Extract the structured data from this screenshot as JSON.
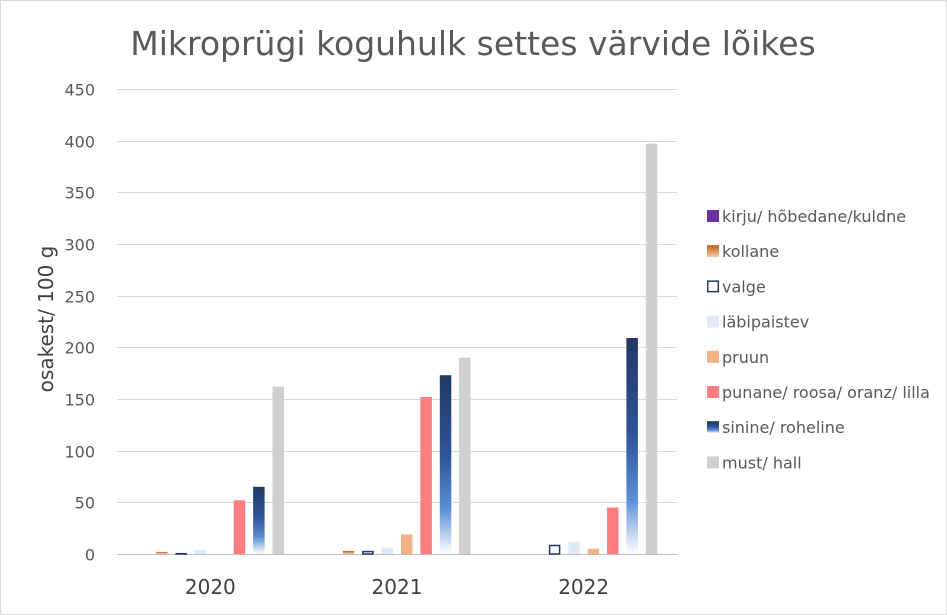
{
  "chart_data": {
    "type": "bar",
    "title": "Mikroprügi koguhulk settes värvide lõikes",
    "xlabel": "",
    "ylabel": "osakest/ 100  g",
    "ylim": [
      0,
      450
    ],
    "yticks": [
      0,
      50,
      100,
      150,
      200,
      250,
      300,
      350,
      400,
      450
    ],
    "grid": true,
    "legend_position": "right",
    "categories": [
      "2020",
      "2021",
      "2022"
    ],
    "series": [
      {
        "name": "kirju/ hõbedane/kuldne",
        "values": [
          0,
          0,
          0
        ],
        "color": "#7030a0",
        "style": "solid"
      },
      {
        "name": "kollane",
        "values": [
          2,
          3,
          0
        ],
        "color": "#ed7d31",
        "style": "gradient-orange"
      },
      {
        "name": "valge",
        "values": [
          1,
          3,
          9
        ],
        "color": "#ffffff",
        "stroke": "#203864",
        "style": "outline"
      },
      {
        "name": "läbipaistev",
        "values": [
          4,
          6,
          12
        ],
        "color": "#deebf7",
        "style": "solid"
      },
      {
        "name": "pruun",
        "values": [
          0,
          19,
          5
        ],
        "color": "#f4b183",
        "style": "solid"
      },
      {
        "name": "punane/ roosa/ oranz/ lilla",
        "values": [
          52,
          152,
          45
        ],
        "color": "#ff7c80",
        "style": "solid"
      },
      {
        "name": "sinine/ roheline",
        "values": [
          65,
          173,
          209
        ],
        "color": "#203864",
        "style": "gradient-blue"
      },
      {
        "name": "must/ hall",
        "values": [
          162,
          190,
          397
        ],
        "color": "#d0cece",
        "style": "solid"
      }
    ]
  }
}
